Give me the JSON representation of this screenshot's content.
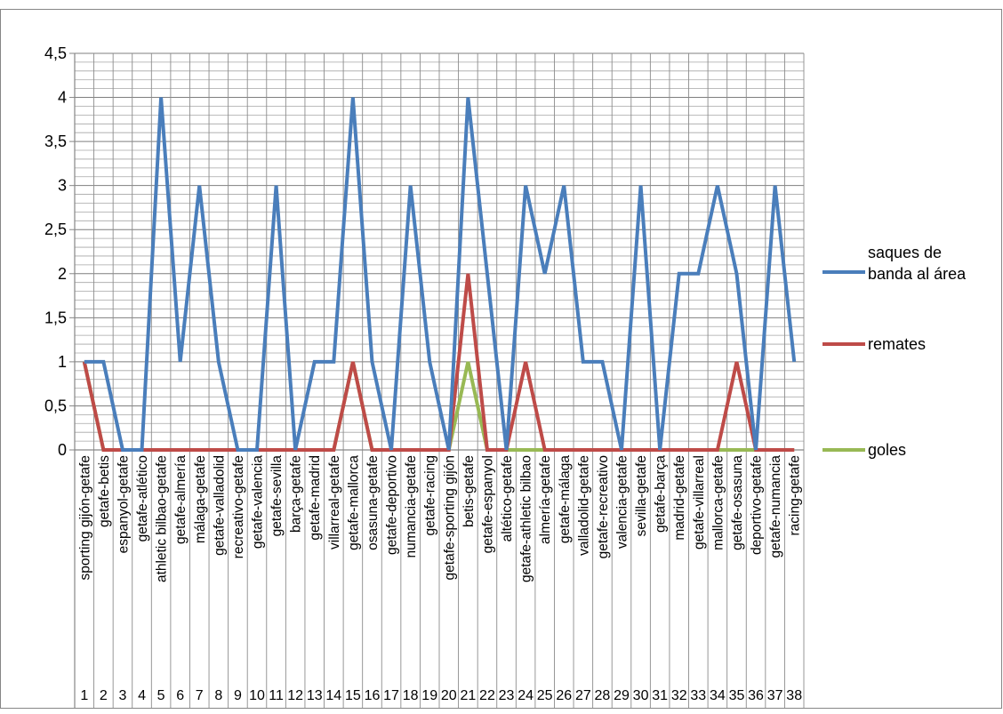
{
  "chart_data": {
    "type": "line",
    "categories": [
      "sporting gijón-getafe",
      "getafe-betis",
      "espanyol-getafe",
      "getafe-atlético",
      "athletic bilbao-getafe",
      "getafe-almería",
      "málaga-getafe",
      "getafe-valladolid",
      "recreativo-getafe",
      "getafe-valencia",
      "getafe-sevilla",
      "barça-getafe",
      "getafe-madrid",
      "villarreal-getafe",
      "getafe-mallorca",
      "osasuna-getafe",
      "getafe-deportivo",
      "numancia-getafe",
      "getafe-racing",
      "getafe-sporting gijón",
      "betis-getafe",
      "getafe-espanyol",
      "altético-getafe",
      "getafe-athletic bilbao",
      "almería-getafe",
      "getafe-málaga",
      "valladolid-getafe",
      "getafe-recreativo",
      "valencia-getafe",
      "sevilla-getafe",
      "getafe-barça",
      "madrid-getafe",
      "getafe-villarreal",
      "mallorca-getafe",
      "getafe-osasuna",
      "deportivo-getafe",
      "getafe-numancia",
      "racing-getafe"
    ],
    "numbers": [
      "1",
      "2",
      "3",
      "4",
      "5",
      "6",
      "7",
      "8",
      "9",
      "10",
      "11",
      "12",
      "13",
      "14",
      "15",
      "16",
      "17",
      "18",
      "19",
      "20",
      "21",
      "22",
      "23",
      "24",
      "25",
      "26",
      "27",
      "28",
      "29",
      "30",
      "31",
      "32",
      "33",
      "34",
      "35",
      "36",
      "37",
      "38"
    ],
    "series": [
      {
        "name": "saques de banda al área",
        "color": "#4a7ebb",
        "values": [
          1,
          1,
          0,
          0,
          4,
          1,
          3,
          1,
          0,
          0,
          3,
          0,
          1,
          1,
          4,
          1,
          0,
          3,
          1,
          0,
          4,
          2,
          0,
          3,
          2,
          3,
          1,
          1,
          0,
          3,
          0,
          2,
          2,
          3,
          2,
          0,
          3,
          1
        ]
      },
      {
        "name": "remates",
        "color": "#be4b48",
        "values": [
          1,
          0,
          0,
          0,
          0,
          0,
          0,
          0,
          0,
          0,
          0,
          0,
          0,
          0,
          1,
          0,
          0,
          0,
          0,
          0,
          2,
          0,
          0,
          1,
          0,
          0,
          0,
          0,
          0,
          0,
          0,
          0,
          0,
          0,
          1,
          0,
          0,
          0
        ]
      },
      {
        "name": "goles",
        "color": "#98b954",
        "values": [
          1,
          0,
          0,
          0,
          0,
          0,
          0,
          0,
          0,
          0,
          0,
          0,
          0,
          0,
          1,
          0,
          0,
          0,
          0,
          0,
          1,
          0,
          0,
          0,
          0,
          0,
          0,
          0,
          0,
          0,
          0,
          0,
          0,
          0,
          0,
          0,
          0,
          0
        ]
      }
    ],
    "yticks": [
      "0",
      "0,5",
      "1",
      "1,5",
      "2",
      "2,5",
      "3",
      "3,5",
      "4",
      "4,5"
    ],
    "ylim": [
      0,
      4.5
    ],
    "grid": true,
    "legend_position": "right",
    "legend_lines": [
      [
        "saques de",
        "banda al área"
      ],
      [
        "remates"
      ],
      [
        "goles"
      ]
    ]
  }
}
